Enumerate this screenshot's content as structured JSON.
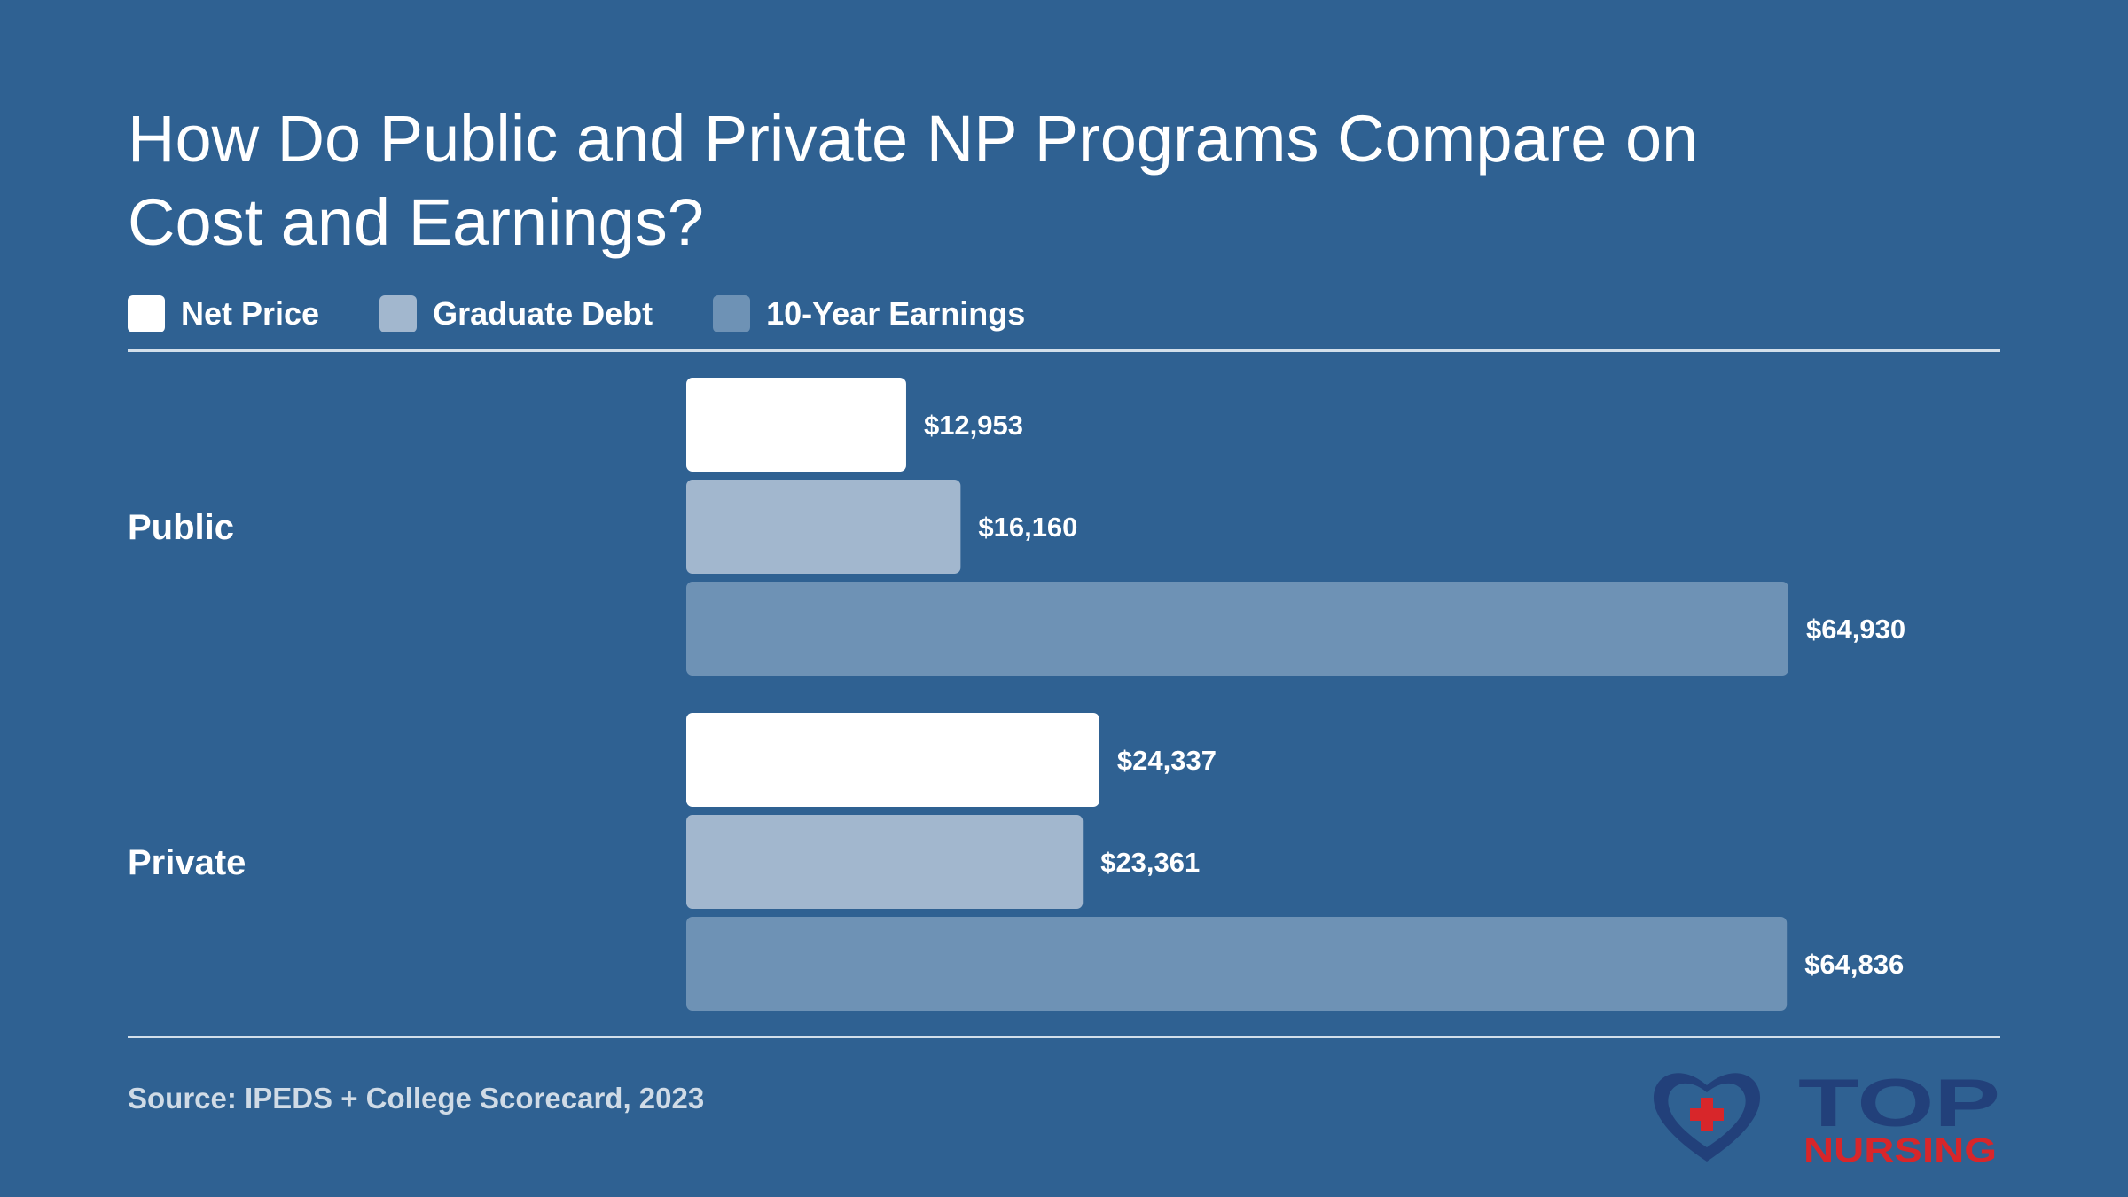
{
  "colors": {
    "background": "#2f6192",
    "net_price": "#ffffff",
    "graduate_debt": "#a2b7ce",
    "ten_year_earnings": "#6e92b5",
    "logo_navy": "#22407a",
    "logo_red": "#d8262a"
  },
  "legend": [
    {
      "label": "Net Price",
      "color": "#ffffff"
    },
    {
      "label": "Graduate Debt",
      "color": "#a2b7ce"
    },
    {
      "label": "10-Year Earnings",
      "color": "#6e92b5"
    }
  ],
  "source": "Source: IPEDS + College Scorecard, 2023",
  "logo": {
    "line1": "TOP",
    "line2": "NURSING",
    "icon": "heart-plus-icon"
  },
  "chart_data": {
    "type": "bar",
    "orientation": "horizontal",
    "title": "How Do Public and Private NP Programs Compare on Cost and Earnings?",
    "categories": [
      "Public",
      "Private"
    ],
    "series": [
      {
        "name": "Net Price",
        "values": [
          12953,
          24337
        ],
        "labels": [
          "$12,953",
          "$24,337"
        ],
        "color": "#ffffff"
      },
      {
        "name": "Graduate Debt",
        "values": [
          16160,
          23361
        ],
        "labels": [
          "$16,160",
          "$23,361"
        ],
        "color": "#a2b7ce"
      },
      {
        "name": "10-Year Earnings",
        "values": [
          64930,
          64836
        ],
        "labels": [
          "$64,930",
          "$64,836"
        ],
        "color": "#6e92b5"
      }
    ],
    "xlim": [
      0,
      64930
    ],
    "grid": false,
    "legend_position": "top-left"
  }
}
